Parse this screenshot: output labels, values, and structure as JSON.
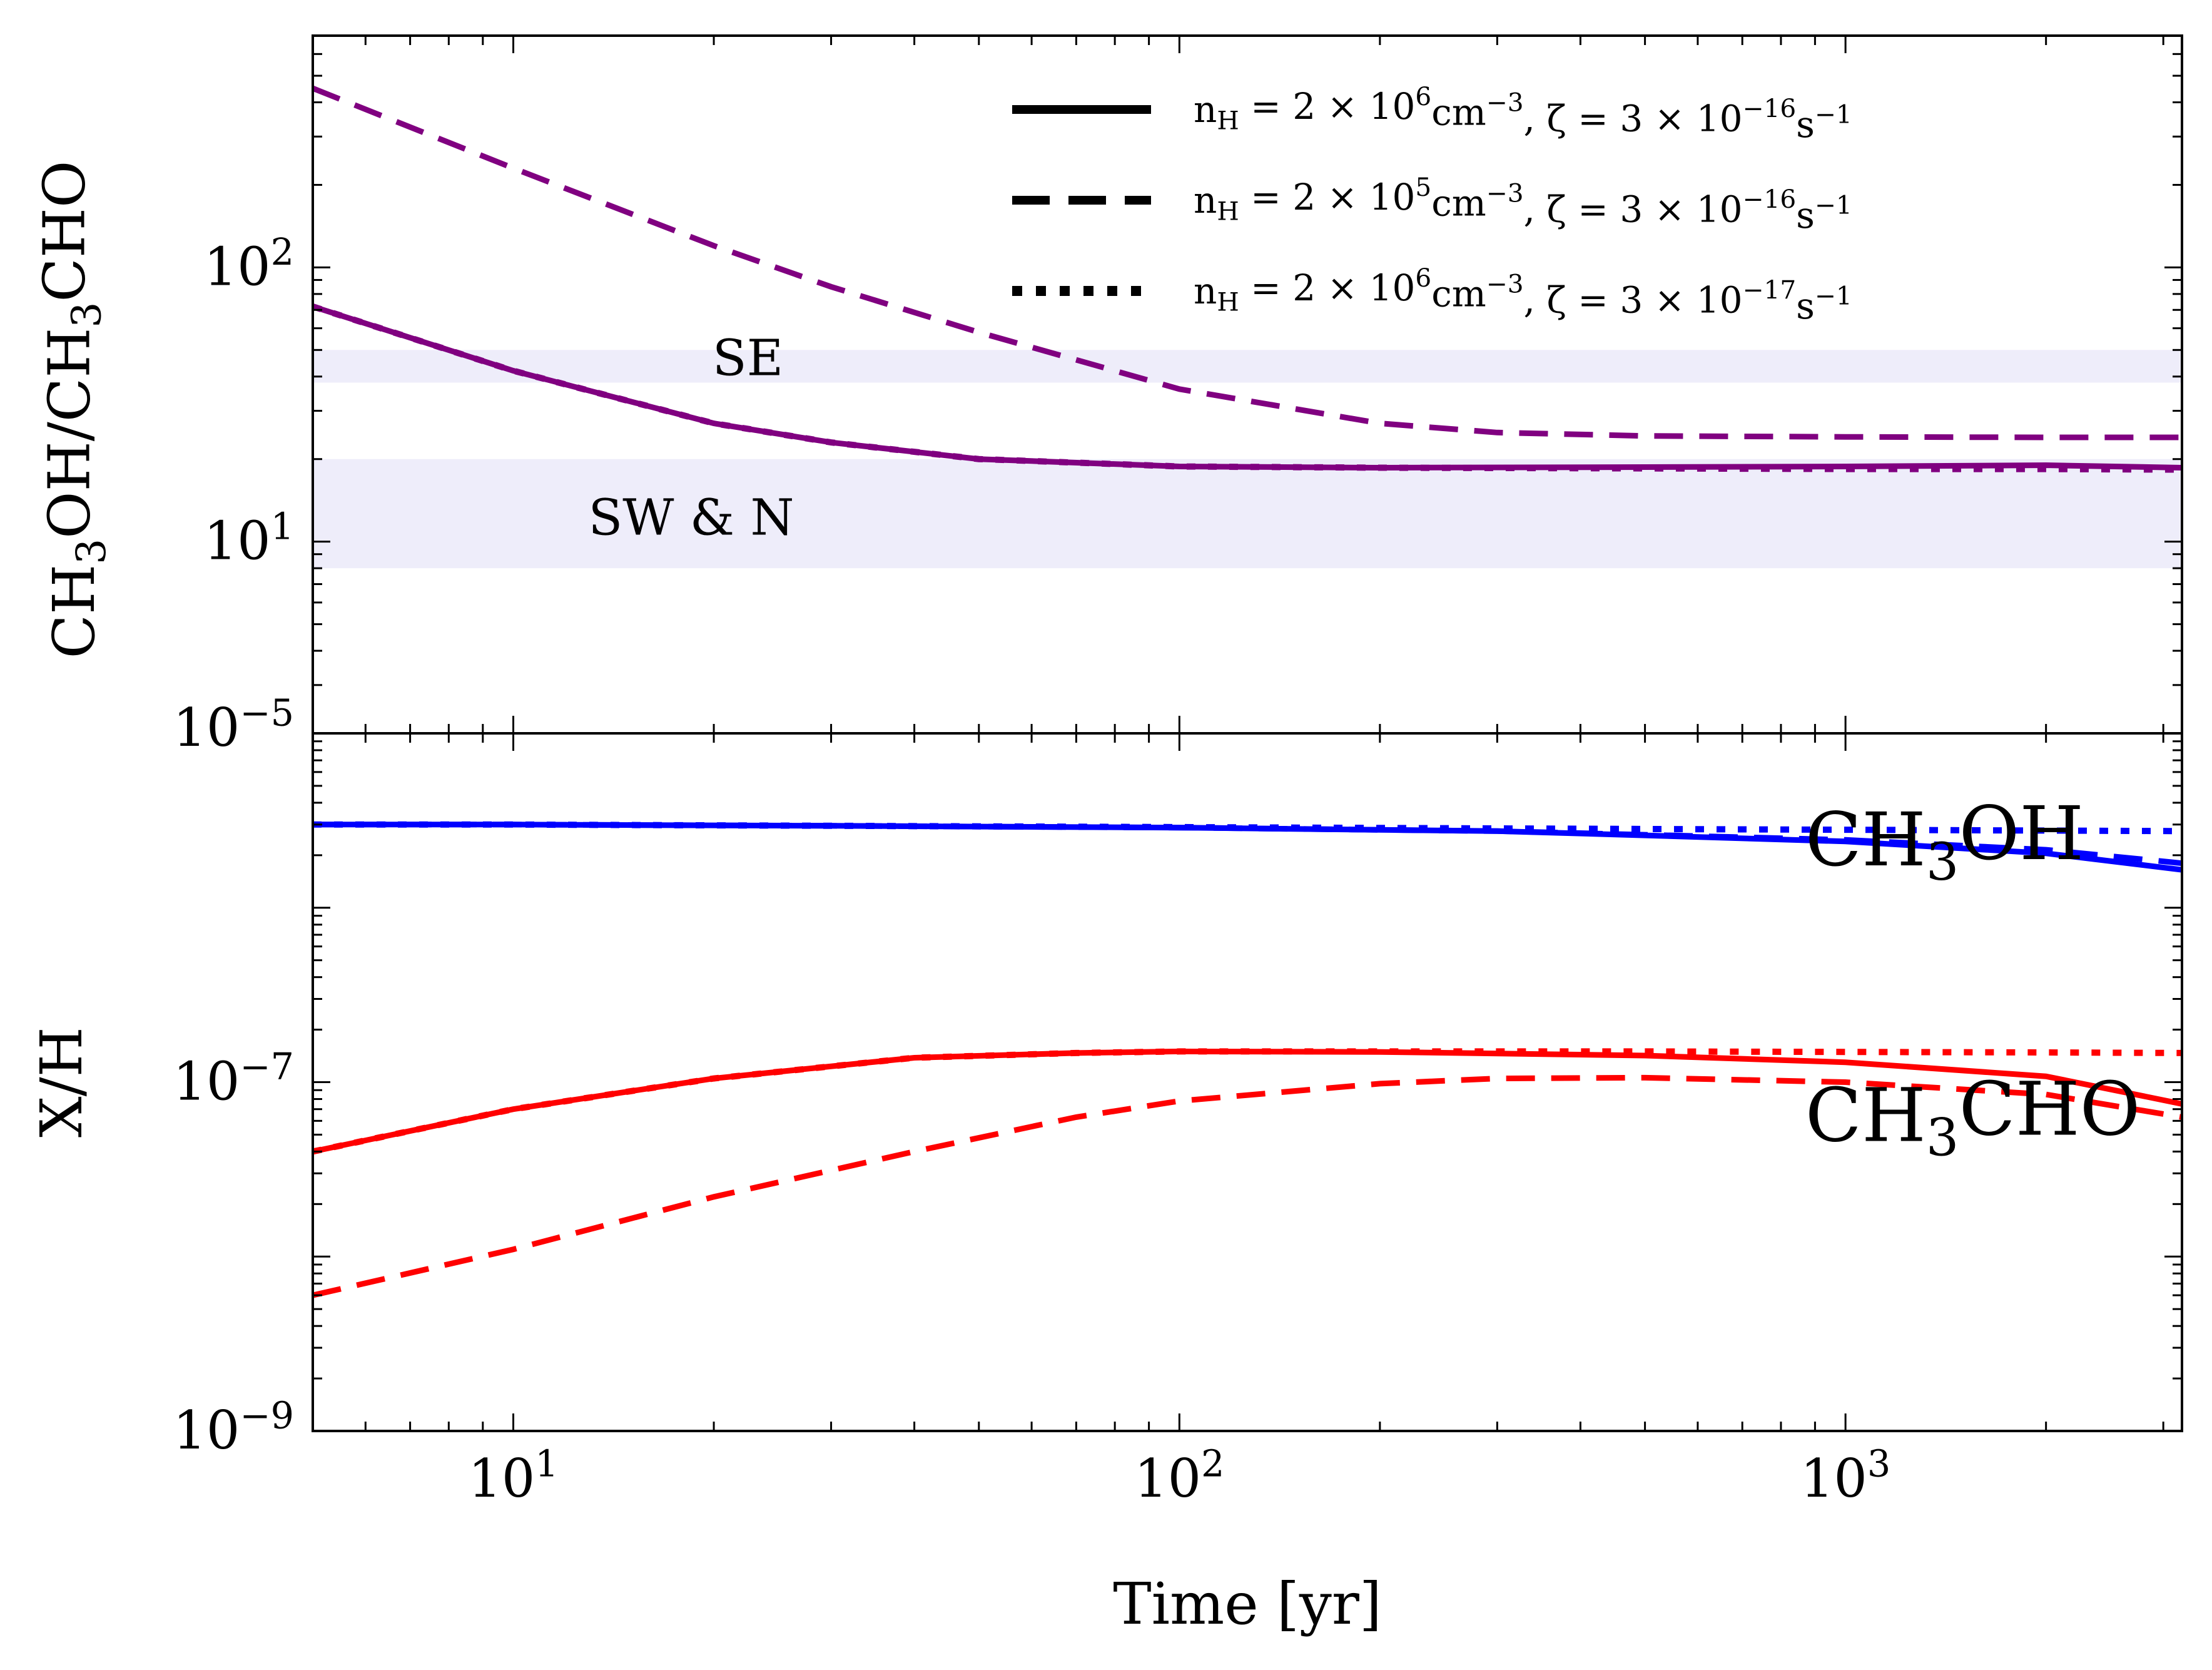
{
  "chart_data": [
    {
      "panel": "top",
      "type": "line",
      "xlabel": "Time [yr]",
      "ylabel": "CH3OH/CH3CHO",
      "ylabel_parts": [
        {
          "t": "CH"
        },
        {
          "t": "3",
          "sub": true
        },
        {
          "t": "OH/CH"
        },
        {
          "t": "3",
          "sub": true
        },
        {
          "t": "CHO"
        }
      ],
      "xscale": "log",
      "yscale": "log",
      "xlim": [
        5,
        3200
      ],
      "ylim": [
        2,
        700
      ],
      "xticks": [
        {
          "value": 10,
          "base": "10",
          "exp": "1"
        },
        {
          "value": 100,
          "base": "10",
          "exp": "2"
        },
        {
          "value": 1000,
          "base": "10",
          "exp": "3"
        }
      ],
      "yticks": [
        {
          "value": 10,
          "base": "10",
          "exp": "1"
        },
        {
          "value": 100,
          "base": "10",
          "exp": "2"
        }
      ],
      "bottom_tick_label": {
        "base": "10",
        "exp": "−5"
      },
      "bands": [
        {
          "name": "SE",
          "y": [
            38,
            50
          ]
        },
        {
          "name": "SW & N",
          "y": [
            8,
            20
          ]
        }
      ],
      "series": [
        {
          "style": "solid",
          "color": "#800080",
          "x": [
            5,
            10,
            20,
            30,
            50,
            100,
            200,
            500,
            1000,
            2000,
            3200
          ],
          "y": [
            72,
            42,
            27,
            23,
            20,
            18.8,
            18.6,
            18.7,
            18.8,
            19.0,
            18.6
          ]
        },
        {
          "style": "dashed",
          "color": "#800080",
          "x": [
            5,
            10,
            20,
            30,
            50,
            100,
            200,
            300,
            500,
            1000,
            2000,
            3200
          ],
          "y": [
            450,
            230,
            120,
            85,
            58,
            36,
            27,
            25,
            24.3,
            24.1,
            24.0,
            24.0
          ]
        },
        {
          "style": "dotted",
          "color": "#800080",
          "x": [
            5,
            10,
            20,
            30,
            50,
            100,
            200,
            500,
            1000,
            2000,
            3200
          ],
          "y": [
            72,
            42,
            27,
            23,
            20,
            18.8,
            18.6,
            18.5,
            18.4,
            18.4,
            18.3
          ]
        }
      ],
      "legend": {
        "location": "top-right",
        "entries": [
          {
            "style": "solid",
            "n_exp": "6",
            "zeta_exp": "−16"
          },
          {
            "style": "dashed",
            "n_exp": "5",
            "zeta_exp": "−16"
          },
          {
            "style": "dotted",
            "n_exp": "6",
            "zeta_exp": "−17"
          }
        ]
      }
    },
    {
      "panel": "bottom",
      "type": "line",
      "xlabel": "Time [yr]",
      "ylabel": "X/H",
      "xscale": "log",
      "yscale": "log",
      "xlim": [
        5,
        3200
      ],
      "ylim": [
        1e-09,
        1e-05
      ],
      "xticks": [
        {
          "value": 10,
          "base": "10",
          "exp": "1"
        },
        {
          "value": 100,
          "base": "10",
          "exp": "2"
        },
        {
          "value": 1000,
          "base": "10",
          "exp": "3"
        }
      ],
      "yticks": [
        {
          "value": 1e-09,
          "base": "10",
          "exp": "−9"
        },
        {
          "value": 1e-07,
          "base": "10",
          "exp": "−7"
        }
      ],
      "series": [
        {
          "species": "CH3OH",
          "style": "solid",
          "color": "#0000ff",
          "x": [
            5,
            10,
            30,
            100,
            300,
            500,
            1000,
            2000,
            3200
          ],
          "y": [
            3e-06,
            3e-06,
            2.95e-06,
            2.88e-06,
            2.75e-06,
            2.6e-06,
            2.4e-06,
            2.05e-06,
            1.65e-06
          ]
        },
        {
          "species": "CH3OH",
          "style": "dashed",
          "color": "#0000ff",
          "x": [
            5,
            10,
            30,
            100,
            300,
            500,
            1000,
            2000,
            3200
          ],
          "y": [
            3e-06,
            3e-06,
            2.95e-06,
            2.88e-06,
            2.75e-06,
            2.62e-06,
            2.45e-06,
            2.15e-06,
            1.8e-06
          ]
        },
        {
          "species": "CH3OH",
          "style": "dotted",
          "color": "#0000ff",
          "x": [
            5,
            10,
            30,
            100,
            300,
            1000,
            3200
          ],
          "y": [
            3e-06,
            3e-06,
            2.95e-06,
            2.9e-06,
            2.85e-06,
            2.8e-06,
            2.75e-06
          ]
        },
        {
          "species": "CH3CHO",
          "style": "solid",
          "color": "#ff0000",
          "x": [
            5,
            10,
            20,
            40,
            70,
            100,
            200,
            500,
            1000,
            2000,
            3200
          ],
          "y": [
            4e-08,
            7e-08,
            1.05e-07,
            1.38e-07,
            1.47e-07,
            1.5e-07,
            1.49e-07,
            1.42e-07,
            1.3e-07,
            1.08e-07,
            7.5e-08
          ]
        },
        {
          "species": "CH3CHO",
          "style": "dashed",
          "color": "#ff0000",
          "x": [
            5,
            10,
            20,
            40,
            70,
            100,
            200,
            300,
            500,
            1000,
            2000,
            3200
          ],
          "y": [
            6e-09,
            1.1e-08,
            2.2e-08,
            4e-08,
            6.3e-08,
            7.8e-08,
            9.8e-08,
            1.05e-07,
            1.06e-07,
            1e-07,
            8.5e-08,
            6.3e-08
          ]
        },
        {
          "species": "CH3CHO",
          "style": "dotted",
          "color": "#ff0000",
          "x": [
            5,
            10,
            20,
            40,
            70,
            100,
            200,
            500,
            1000,
            2000,
            3200
          ],
          "y": [
            4e-08,
            7e-08,
            1.05e-07,
            1.38e-07,
            1.47e-07,
            1.5e-07,
            1.5e-07,
            1.5e-07,
            1.49e-07,
            1.48e-07,
            1.47e-07
          ]
        }
      ],
      "annotations": [
        {
          "name": "CH3OH",
          "color": "#0000ff",
          "x": 870,
          "y": 1.75e-06,
          "parts": [
            {
              "t": "CH"
            },
            {
              "t": "3",
              "sub": true
            },
            {
              "t": "OH"
            }
          ]
        },
        {
          "name": "CH3CHO",
          "color": "#ff0000",
          "x": 870,
          "y": 4.6e-08,
          "parts": [
            {
              "t": "CH"
            },
            {
              "t": "3",
              "sub": true
            },
            {
              "t": "CHO"
            }
          ]
        }
      ]
    }
  ]
}
